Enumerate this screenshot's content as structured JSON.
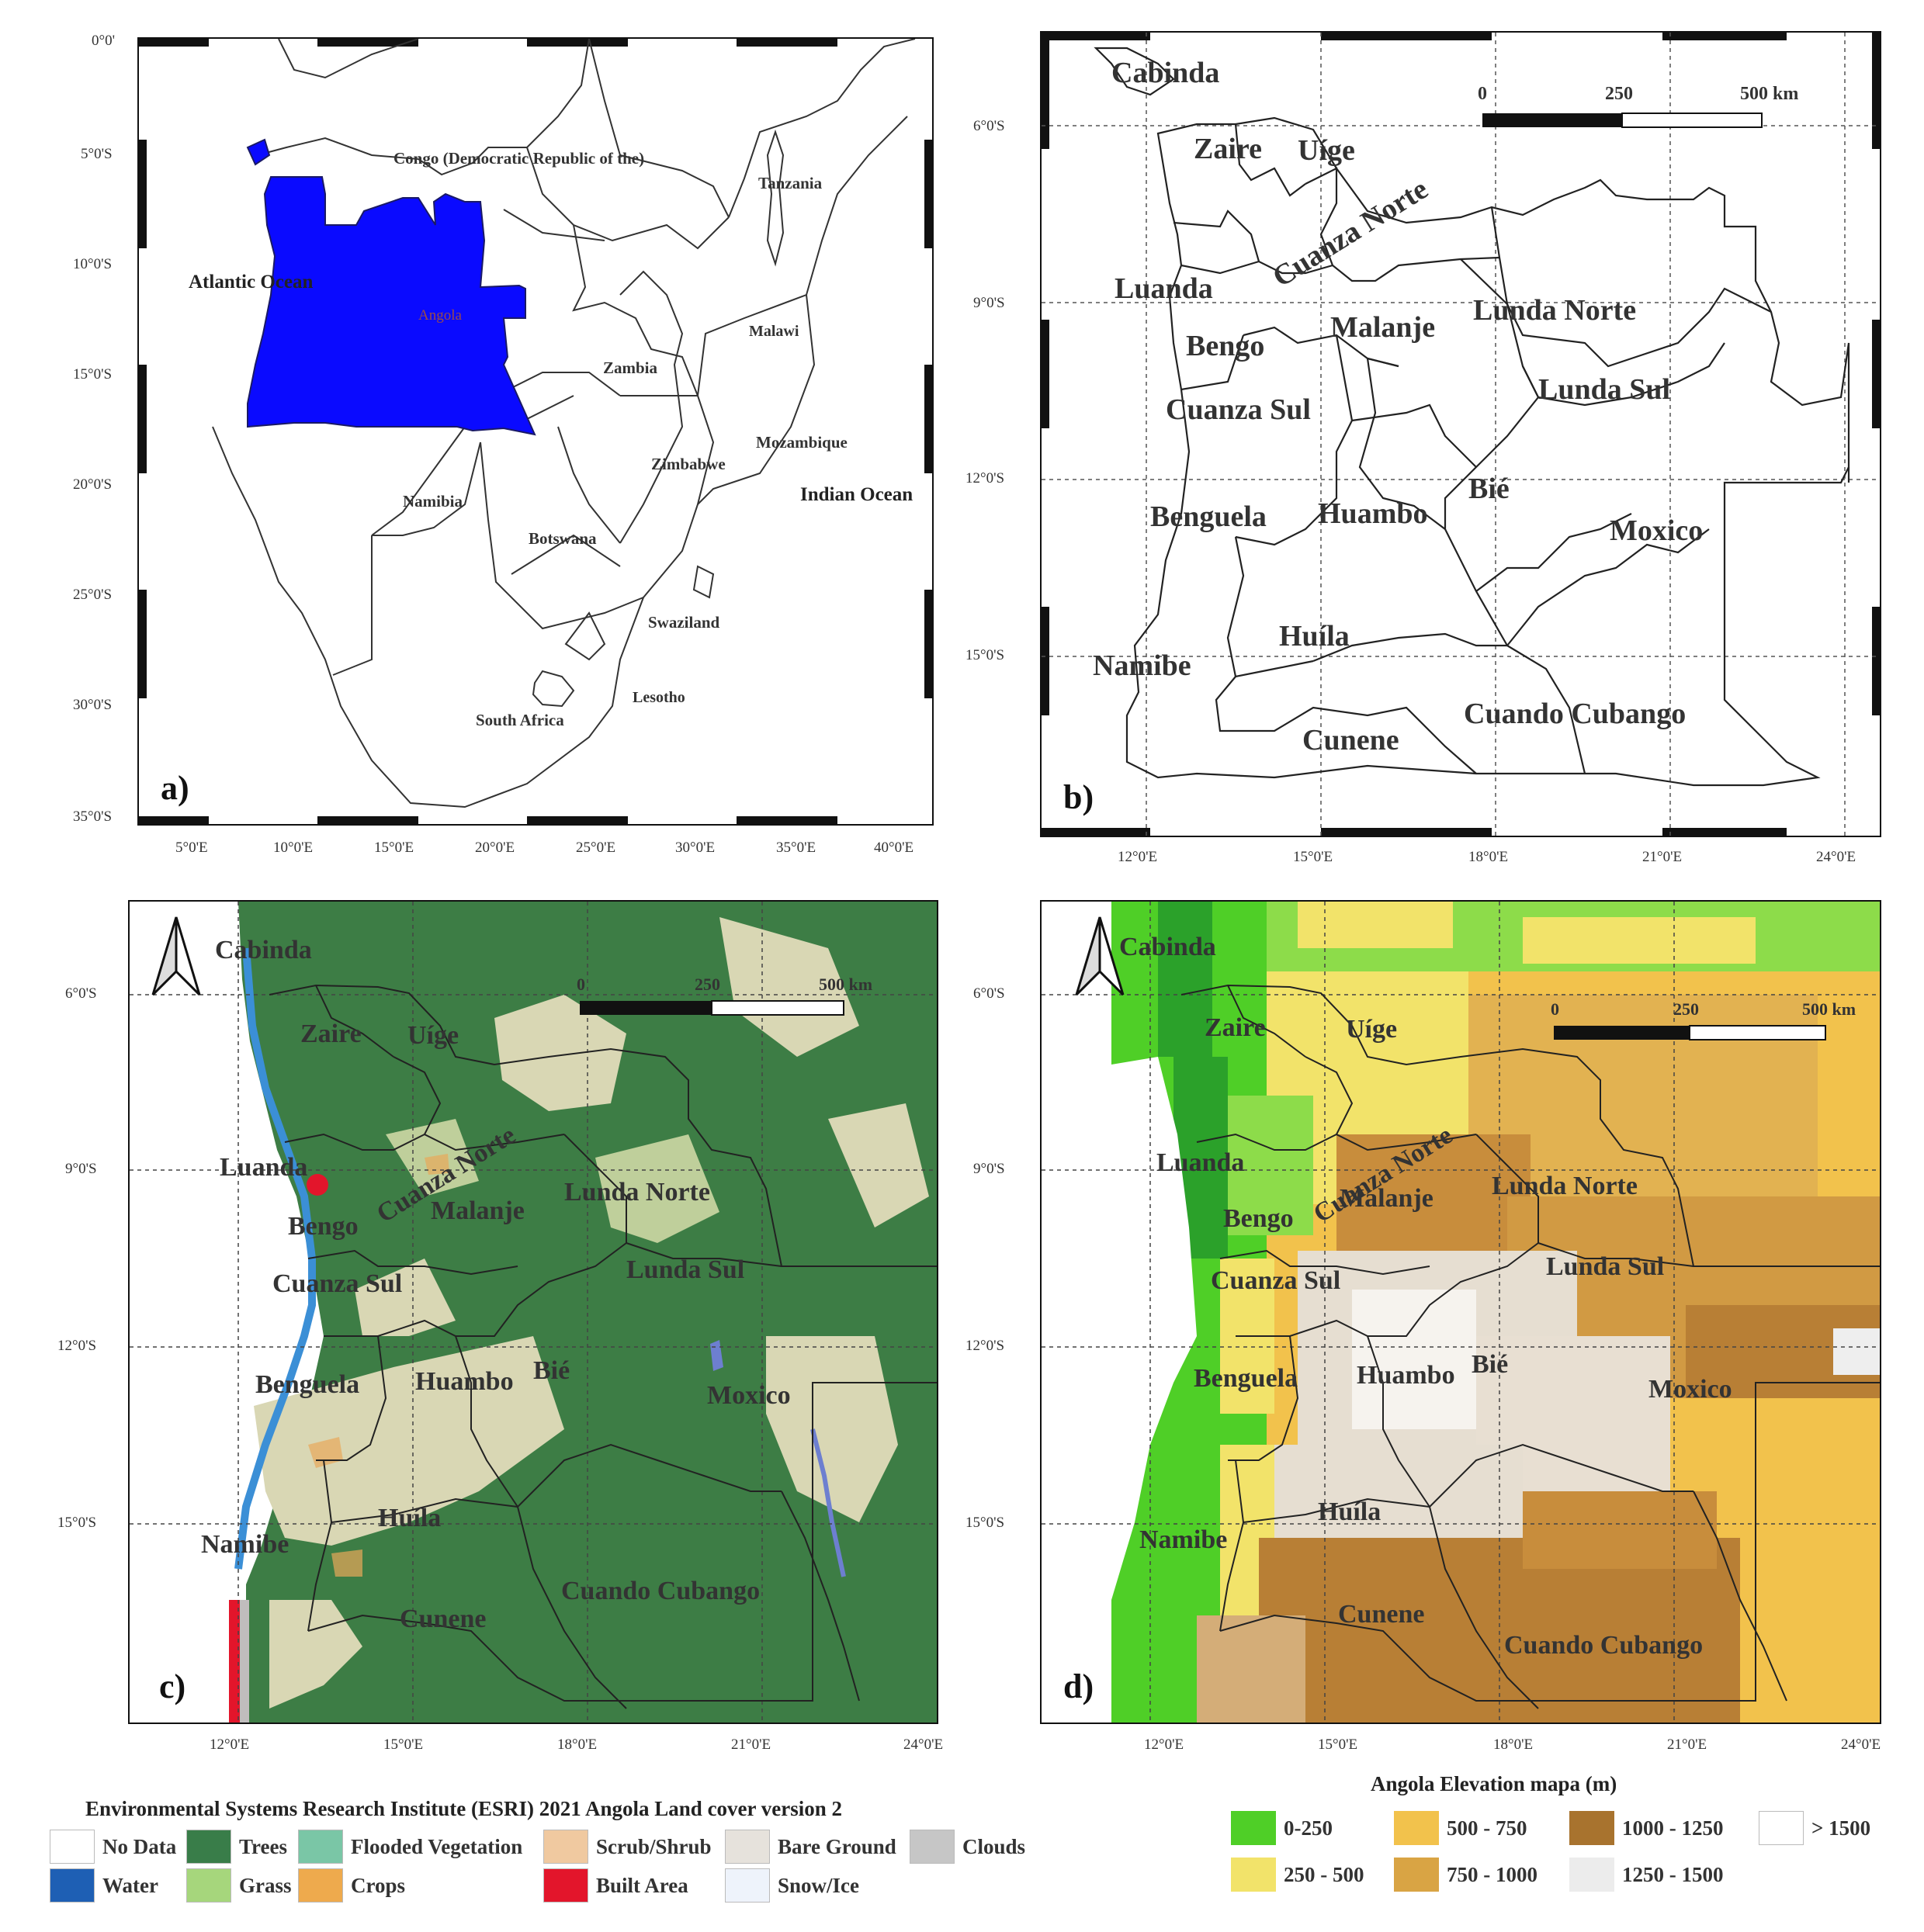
{
  "panels": {
    "a": {
      "label": "a)",
      "lat_ticks": [
        "0°0'",
        "5°0'S",
        "10°0'S",
        "15°0'S",
        "20°0'S",
        "25°0'S",
        "30°0'S",
        "35°0'S"
      ],
      "lon_ticks": [
        "5°0'E",
        "10°0'E",
        "15°0'E",
        "20°0'E",
        "25°0'E",
        "30°0'E",
        "35°0'E",
        "40°0'E"
      ],
      "labels": {
        "congo": "Congo (Democratic Republic of the)",
        "tanzania": "Tanzania",
        "atlantic": "Atlantic Ocean",
        "angola": "Angola",
        "malawi": "Malawi",
        "zambia": "Zambia",
        "mozambique": "Mozambique",
        "zimbabwe": "Zimbabwe",
        "indian": "Indian Ocean",
        "namibia": "Namibia",
        "botswana": "Botswana",
        "swaziland": "Swaziland",
        "lesotho": "Lesotho",
        "south_africa": "South Africa"
      },
      "colors": {
        "angola_fill": "#0a0aff"
      }
    },
    "b": {
      "label": "b)",
      "lat_ticks": [
        "6°0'S",
        "9°0'S",
        "12°0'S",
        "15°0'S"
      ],
      "lon_ticks": [
        "12°0'E",
        "15°0'E",
        "18°0'E",
        "21°0'E",
        "24°0'E"
      ],
      "scale": {
        "t0": "0",
        "t1": "250",
        "t2": "500 km"
      },
      "provinces": {
        "cabinda": "Cabinda",
        "zaire": "Zaire",
        "uige": "Uíge",
        "luanda": "Luanda",
        "cuanza_norte": "Cuanza Norte",
        "bengo": "Bengo",
        "malanje": "Malanje",
        "lunda_norte": "Lunda Norte",
        "lunda_sul": "Lunda Sul",
        "cuanza_sul": "Cuanza Sul",
        "benguela": "Benguela",
        "huambo": "Huambo",
        "bie": "Bié",
        "moxico": "Moxico",
        "huila": "Huíla",
        "namibe": "Namibe",
        "cunene": "Cunene",
        "cuando_cubango": "Cuando Cubango"
      }
    },
    "c": {
      "label": "c)",
      "lat_ticks": [
        "6°0'S",
        "9°0'S",
        "12°0'S",
        "15°0'S"
      ],
      "lon_ticks": [
        "12°0'E",
        "15°0'E",
        "18°0'E",
        "21°0'E",
        "24°0'E"
      ],
      "scale": {
        "t0": "0",
        "t1": "250",
        "t2": "500 km"
      }
    },
    "d": {
      "label": "d)",
      "lat_ticks": [
        "6°0'S",
        "9°0'S",
        "12°0'S",
        "15°0'S"
      ],
      "lon_ticks": [
        "12°0'E",
        "15°0'E",
        "18°0'E",
        "21°0'E",
        "24°0'E"
      ],
      "scale": {
        "t0": "0",
        "t1": "250",
        "t2": "500 km"
      }
    }
  },
  "north_arrow_icon": "north-arrow-icon",
  "landcover_legend": {
    "title": "Environmental Systems Research Institute (ESRI) 2021 Angola Land cover version 2",
    "items": [
      {
        "label": "No Data",
        "color": "#ffffff"
      },
      {
        "label": "Trees",
        "color": "#397d49"
      },
      {
        "label": "Flooded Vegetation",
        "color": "#7ac6a6"
      },
      {
        "label": "Scrub/Shrub",
        "color": "#f0c9a0"
      },
      {
        "label": "Bare Ground",
        "color": "#e6e2dc"
      },
      {
        "label": "Clouds",
        "color": "#c6c6c6"
      },
      {
        "label": "Water",
        "color": "#1e5fb4"
      },
      {
        "label": "Grass",
        "color": "#a6d67c"
      },
      {
        "label": "Crops",
        "color": "#eeaa4d"
      },
      {
        "label": "Built Area",
        "color": "#e3152b"
      },
      {
        "label": "Snow/Ice",
        "color": "#eef3fb"
      }
    ]
  },
  "elevation_legend": {
    "title": "Angola Elevation mapa (m)",
    "items": [
      {
        "label": "0-250",
        "color": "#4fcf27"
      },
      {
        "label": "500 - 750",
        "color": "#f2c24c"
      },
      {
        "label": "1000 - 1250",
        "color": "#a8732e"
      },
      {
        "label": "> 1500",
        "color": "#ffffff"
      },
      {
        "label": "250 - 500",
        "color": "#f2e36a"
      },
      {
        "label": "750 - 1000",
        "color": "#d9a444"
      },
      {
        "label": "1250 - 1500",
        "color": "#ececec"
      }
    ]
  }
}
